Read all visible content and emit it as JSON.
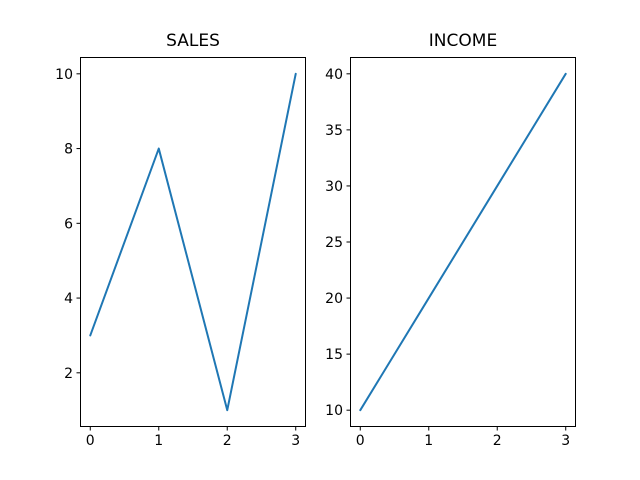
{
  "figure": {
    "background": "#ffffff",
    "axis_color": "#000000",
    "line_color": "#1f77b4"
  },
  "chart_data": [
    {
      "type": "line",
      "title": "SALES",
      "x": [
        0,
        1,
        2,
        3
      ],
      "values": [
        3,
        8,
        1,
        10
      ],
      "xticks": [
        0,
        1,
        2,
        3
      ],
      "yticks": [
        2,
        4,
        6,
        8,
        10
      ],
      "xlim": [
        -0.15,
        3.15
      ],
      "ylim": [
        0.55,
        10.45
      ],
      "grid": false,
      "legend": "none"
    },
    {
      "type": "line",
      "title": "INCOME",
      "x": [
        0,
        1,
        2,
        3
      ],
      "values": [
        10,
        20,
        30,
        40
      ],
      "xticks": [
        0,
        1,
        2,
        3
      ],
      "yticks": [
        10,
        15,
        20,
        25,
        30,
        35,
        40
      ],
      "xlim": [
        -0.15,
        3.15
      ],
      "ylim": [
        8.5,
        41.5
      ],
      "grid": false,
      "legend": "none"
    }
  ]
}
